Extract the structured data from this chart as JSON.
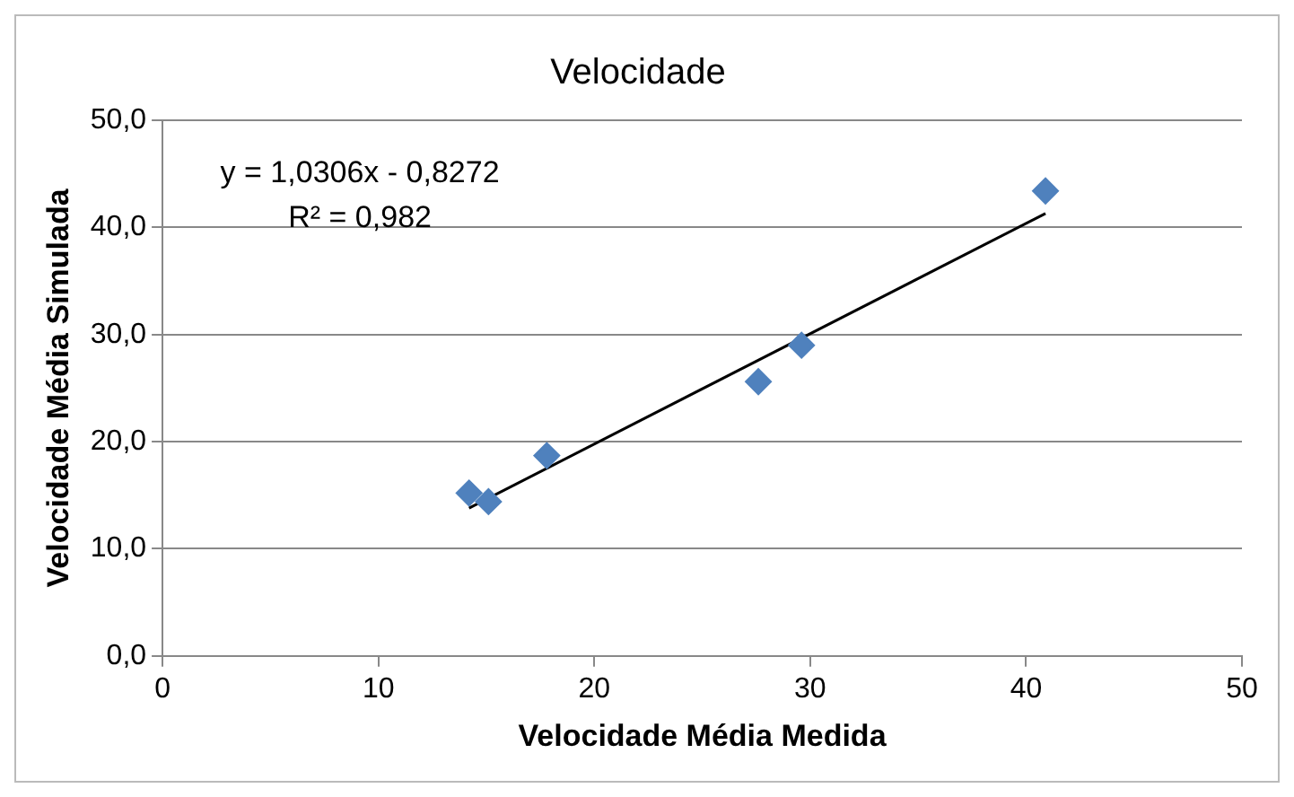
{
  "chart_data": {
    "type": "scatter",
    "title": "Velocidade",
    "xlabel": "Velocidade Média Medida",
    "ylabel": "Velocidade Média Simulada",
    "series": [
      {
        "color": "#4f81bd",
        "x": [
          14.2,
          15.1,
          17.8,
          27.6,
          29.6,
          40.9
        ],
        "values": [
          15.2,
          14.4,
          18.7,
          25.6,
          29.0,
          43.4
        ],
        "marker": "diamond"
      },
      {
        "type": "line",
        "color": "#000000",
        "x": [
          14.2,
          40.9
        ],
        "values": [
          13.8,
          41.3
        ],
        "marker": "none"
      }
    ],
    "xlim": [
      0,
      50
    ],
    "xticks": [
      0,
      10,
      20,
      30,
      40,
      50
    ],
    "ylim": [
      0,
      50
    ],
    "yticks": [
      {
        "value": 0,
        "label": "0,0"
      },
      {
        "value": 10,
        "label": "10,0"
      },
      {
        "value": 20,
        "label": "20,0"
      },
      {
        "value": 30,
        "label": "30,0"
      },
      {
        "value": 40,
        "label": "40,0"
      },
      {
        "value": 50,
        "label": "50,0"
      }
    ],
    "grid": "y",
    "legend": false,
    "annotations": [
      "y = 1,0306x - 0,8272",
      "R² = 0,982"
    ]
  }
}
